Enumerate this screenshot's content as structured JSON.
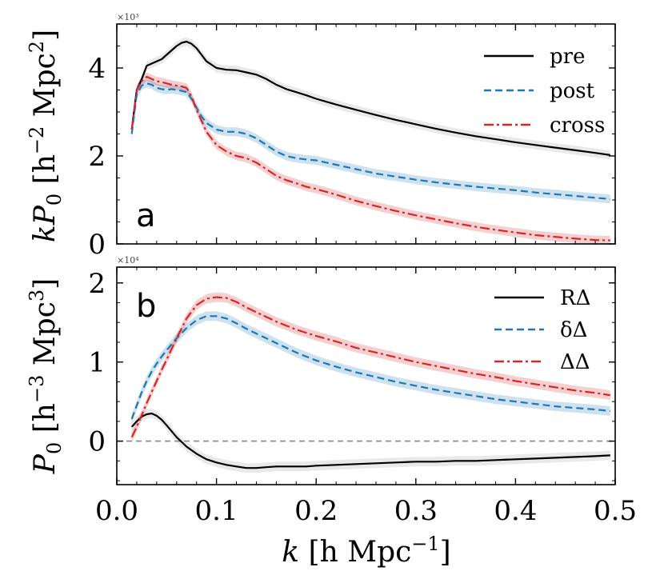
{
  "chart_data": [
    {
      "type": "line",
      "panel_label": "a",
      "ylabel": "kP0 [h^-2 Mpc^2]",
      "ylabel_parts": {
        "main": "kP",
        "sub": "0",
        "open": " [h",
        "exp1": "−2",
        "mid": " Mpc",
        "exp2": "2",
        "close": "]"
      },
      "scale_note": "×10³",
      "xlim": [
        0,
        0.5
      ],
      "ylim": [
        0,
        5.0
      ],
      "yticks": [
        0,
        2,
        4
      ],
      "ytick_labels": [
        "0",
        "2",
        "4"
      ],
      "legend_position": "top-right",
      "x": [
        0.015,
        0.02,
        0.025,
        0.03,
        0.035,
        0.04,
        0.045,
        0.05,
        0.055,
        0.06,
        0.065,
        0.07,
        0.075,
        0.08,
        0.085,
        0.09,
        0.1,
        0.11,
        0.12,
        0.13,
        0.14,
        0.15,
        0.16,
        0.17,
        0.18,
        0.19,
        0.2,
        0.22,
        0.24,
        0.26,
        0.28,
        0.3,
        0.32,
        0.34,
        0.36,
        0.38,
        0.4,
        0.42,
        0.44,
        0.46,
        0.48,
        0.495
      ],
      "series": [
        {
          "name": "pre",
          "color": "#000000",
          "dash": "solid",
          "band": "#999999",
          "values": [
            2.6,
            3.5,
            3.75,
            4.05,
            4.1,
            4.15,
            4.2,
            4.3,
            4.4,
            4.5,
            4.57,
            4.6,
            4.55,
            4.45,
            4.3,
            4.15,
            4.0,
            3.96,
            3.95,
            3.9,
            3.85,
            3.75,
            3.62,
            3.52,
            3.45,
            3.38,
            3.3,
            3.17,
            3.05,
            2.93,
            2.82,
            2.72,
            2.62,
            2.53,
            2.45,
            2.38,
            2.31,
            2.25,
            2.19,
            2.13,
            2.07,
            2.02
          ]
        },
        {
          "name": "post",
          "color": "#1f77b4",
          "dash": "dashed",
          "band": "#1f77b4",
          "values": [
            2.5,
            3.4,
            3.6,
            3.65,
            3.62,
            3.55,
            3.52,
            3.5,
            3.52,
            3.5,
            3.48,
            3.45,
            3.3,
            3.1,
            2.9,
            2.75,
            2.6,
            2.55,
            2.55,
            2.5,
            2.4,
            2.25,
            2.1,
            2.0,
            1.95,
            1.92,
            1.9,
            1.8,
            1.7,
            1.6,
            1.53,
            1.46,
            1.4,
            1.35,
            1.3,
            1.26,
            1.22,
            1.17,
            1.13,
            1.09,
            1.05,
            1.02
          ]
        },
        {
          "name": "cross",
          "color": "#d62728",
          "dash": "dashdot",
          "band": "#d62728",
          "values": [
            2.6,
            3.5,
            3.7,
            3.8,
            3.75,
            3.7,
            3.68,
            3.65,
            3.62,
            3.6,
            3.58,
            3.55,
            3.35,
            3.05,
            2.8,
            2.55,
            2.25,
            2.1,
            2.0,
            1.95,
            1.85,
            1.7,
            1.55,
            1.45,
            1.38,
            1.3,
            1.25,
            1.12,
            0.98,
            0.86,
            0.75,
            0.65,
            0.56,
            0.47,
            0.39,
            0.32,
            0.26,
            0.2,
            0.16,
            0.12,
            0.09,
            0.08
          ]
        }
      ]
    },
    {
      "type": "line",
      "panel_label": "b",
      "ylabel": "P0 [h^-3 Mpc^3]",
      "ylabel_parts": {
        "main": "P",
        "sub": "0",
        "open": " [h",
        "exp1": "−3",
        "mid": " Mpc",
        "exp2": "3",
        "close": "]"
      },
      "scale_note": "×10⁴",
      "xlabel_parts": {
        "main": "k",
        "open": " [h Mpc",
        "exp": "−1",
        "close": "]"
      },
      "xlim": [
        0,
        0.5
      ],
      "ylim": [
        -0.55,
        2.2
      ],
      "yticks": [
        0,
        1,
        2
      ],
      "ytick_labels": [
        "0",
        "1",
        "2"
      ],
      "xticks": [
        0.0,
        0.1,
        0.2,
        0.3,
        0.4,
        0.5
      ],
      "xtick_labels": [
        "0.0",
        "0.1",
        "0.2",
        "0.3",
        "0.4",
        "0.5"
      ],
      "zero_line": true,
      "legend_position": "top-right",
      "x": [
        0.015,
        0.02,
        0.025,
        0.03,
        0.035,
        0.04,
        0.045,
        0.05,
        0.06,
        0.07,
        0.08,
        0.09,
        0.1,
        0.11,
        0.12,
        0.13,
        0.14,
        0.15,
        0.16,
        0.17,
        0.18,
        0.19,
        0.2,
        0.22,
        0.24,
        0.26,
        0.28,
        0.3,
        0.32,
        0.34,
        0.36,
        0.38,
        0.4,
        0.42,
        0.44,
        0.46,
        0.48,
        0.495
      ],
      "series": [
        {
          "name": "RΔ",
          "color": "#000000",
          "dash": "solid",
          "band": "#999999",
          "values": [
            0.18,
            0.25,
            0.31,
            0.34,
            0.35,
            0.32,
            0.27,
            0.2,
            0.05,
            -0.07,
            -0.16,
            -0.23,
            -0.27,
            -0.3,
            -0.32,
            -0.34,
            -0.34,
            -0.33,
            -0.32,
            -0.32,
            -0.32,
            -0.32,
            -0.31,
            -0.3,
            -0.29,
            -0.28,
            -0.27,
            -0.26,
            -0.26,
            -0.25,
            -0.25,
            -0.24,
            -0.23,
            -0.22,
            -0.21,
            -0.2,
            -0.19,
            -0.18
          ]
        },
        {
          "name": "δΔ",
          "color": "#1f77b4",
          "dash": "dashed",
          "band": "#1f77b4",
          "values": [
            0.28,
            0.45,
            0.62,
            0.76,
            0.88,
            0.98,
            1.07,
            1.15,
            1.3,
            1.43,
            1.53,
            1.58,
            1.58,
            1.55,
            1.49,
            1.42,
            1.36,
            1.3,
            1.24,
            1.18,
            1.12,
            1.07,
            1.02,
            0.94,
            0.87,
            0.81,
            0.75,
            0.7,
            0.65,
            0.61,
            0.57,
            0.53,
            0.5,
            0.47,
            0.44,
            0.42,
            0.4,
            0.38
          ]
        },
        {
          "name": "ΔΔ",
          "color": "#d62728",
          "dash": "dashdot",
          "band": "#d62728",
          "values": [
            0.05,
            0.18,
            0.33,
            0.48,
            0.62,
            0.76,
            0.9,
            1.03,
            1.3,
            1.55,
            1.72,
            1.8,
            1.82,
            1.81,
            1.76,
            1.69,
            1.63,
            1.57,
            1.51,
            1.46,
            1.41,
            1.37,
            1.33,
            1.26,
            1.18,
            1.12,
            1.06,
            1.0,
            0.95,
            0.9,
            0.85,
            0.81,
            0.76,
            0.72,
            0.68,
            0.64,
            0.61,
            0.58
          ]
        }
      ]
    }
  ]
}
